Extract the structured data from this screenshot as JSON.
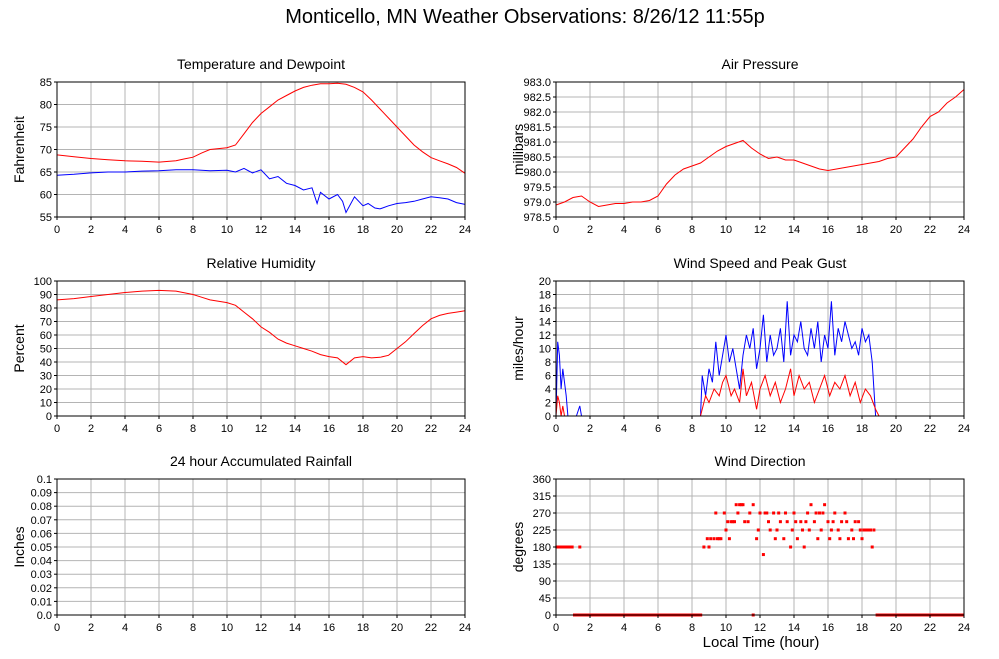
{
  "page": {
    "title": "Monticello, MN Weather Observations: 8/26/12 11:55p",
    "xlabel": "Local Time (hour)"
  },
  "chart_data": [
    {
      "type": "line",
      "title": "Temperature and Dewpoint",
      "ylabel": "Fahrenheit",
      "xlim": [
        0,
        24
      ],
      "ylim": [
        55,
        85
      ],
      "x_ticks": [
        0,
        2,
        4,
        6,
        8,
        10,
        12,
        14,
        16,
        18,
        20,
        22,
        24
      ],
      "y_ticks": [
        "55",
        "60",
        "65",
        "70",
        "75",
        "80",
        "85"
      ],
      "grid": true,
      "series": [
        {
          "color": "#ff0000",
          "x": [
            0,
            1,
            2,
            3,
            4,
            5,
            6,
            7,
            7.5,
            8,
            8.5,
            9,
            10,
            10.5,
            11,
            11.5,
            12,
            12.5,
            13,
            13.5,
            14,
            14.5,
            15,
            15.5,
            16,
            16.5,
            17,
            17.5,
            18,
            18.5,
            19,
            19.5,
            20,
            20.5,
            21,
            21.5,
            22,
            22.5,
            23,
            23.5,
            24
          ],
          "y": [
            68.8,
            68.4,
            68.0,
            67.7,
            67.5,
            67.4,
            67.2,
            67.5,
            67.9,
            68.3,
            69.2,
            70.0,
            70.4,
            71.0,
            73.5,
            76.0,
            78.0,
            79.5,
            81.0,
            82.0,
            83.0,
            83.8,
            84.3,
            84.6,
            84.6,
            84.7,
            84.5,
            83.8,
            82.8,
            81.0,
            79.0,
            77.0,
            75.0,
            73.0,
            71.0,
            69.5,
            68.2,
            67.5,
            66.8,
            66.0,
            64.7
          ]
        },
        {
          "color": "#0000ff",
          "x": [
            0,
            1,
            2,
            3,
            4,
            5,
            6,
            7,
            8,
            9,
            10,
            10.5,
            11,
            11.5,
            12,
            12.5,
            13,
            13.5,
            14,
            14.5,
            15,
            15.3,
            15.5,
            16,
            16.5,
            16.8,
            17,
            17.5,
            18,
            18.3,
            18.7,
            19,
            19.5,
            20,
            20.5,
            21,
            21.5,
            22,
            22.5,
            23,
            23.5,
            24
          ],
          "y": [
            64.3,
            64.5,
            64.8,
            65.0,
            65.0,
            65.2,
            65.3,
            65.5,
            65.5,
            65.3,
            65.4,
            65.0,
            65.8,
            64.8,
            65.5,
            63.5,
            64.0,
            62.5,
            62.0,
            61.0,
            61.5,
            58.0,
            60.5,
            59.0,
            60.0,
            58.5,
            56.0,
            59.5,
            57.5,
            58.0,
            57.0,
            56.8,
            57.5,
            58.0,
            58.2,
            58.5,
            59.0,
            59.5,
            59.3,
            59.0,
            58.2,
            57.8
          ]
        }
      ]
    },
    {
      "type": "line",
      "title": "Air Pressure",
      "ylabel": "millibars",
      "xlim": [
        0,
        24
      ],
      "ylim": [
        978.5,
        983.0
      ],
      "x_ticks": [
        0,
        2,
        4,
        6,
        8,
        10,
        12,
        14,
        16,
        18,
        20,
        22,
        24
      ],
      "y_ticks": [
        "978.5",
        "979.0",
        "979.5",
        "980.0",
        "980.5",
        "981.0",
        "981.5",
        "982.0",
        "982.5",
        "983.0"
      ],
      "grid": true,
      "series": [
        {
          "color": "#ff0000",
          "x": [
            0,
            0.5,
            1,
            1.5,
            2,
            2.5,
            3,
            3.5,
            4,
            4.5,
            5,
            5.5,
            6,
            6.5,
            7,
            7.5,
            8,
            8.5,
            9,
            9.5,
            10,
            10.5,
            11,
            11.5,
            12,
            12.5,
            13,
            13.5,
            14,
            14.5,
            15,
            15.5,
            16,
            16.5,
            17,
            17.5,
            18,
            18.5,
            19,
            19.5,
            20,
            20.5,
            21,
            21.5,
            22,
            22.5,
            23,
            23.5,
            24
          ],
          "y": [
            978.9,
            979.0,
            979.15,
            979.2,
            979.0,
            978.85,
            978.9,
            978.95,
            978.95,
            979.0,
            979.0,
            979.05,
            979.2,
            979.6,
            979.9,
            980.1,
            980.2,
            980.3,
            980.5,
            980.7,
            980.85,
            980.95,
            981.05,
            980.8,
            980.6,
            980.45,
            980.5,
            980.4,
            980.4,
            980.3,
            980.2,
            980.1,
            980.05,
            980.1,
            980.15,
            980.2,
            980.25,
            980.3,
            980.35,
            980.45,
            980.5,
            980.8,
            981.1,
            981.5,
            981.85,
            982.0,
            982.3,
            982.5,
            982.75
          ]
        }
      ]
    },
    {
      "type": "line",
      "title": "Relative Humidity",
      "ylabel": "Percent",
      "xlim": [
        0,
        24
      ],
      "ylim": [
        0,
        100
      ],
      "x_ticks": [
        0,
        2,
        4,
        6,
        8,
        10,
        12,
        14,
        16,
        18,
        20,
        22,
        24
      ],
      "y_ticks": [
        "0",
        "10",
        "20",
        "30",
        "40",
        "50",
        "60",
        "70",
        "80",
        "90",
        "100"
      ],
      "grid": true,
      "series": [
        {
          "color": "#ff0000",
          "x": [
            0,
            1,
            2,
            3,
            4,
            5,
            6,
            7,
            8,
            8.5,
            9,
            9.5,
            10,
            10.5,
            11,
            11.5,
            12,
            12.5,
            13,
            13.5,
            14,
            14.5,
            15,
            15.5,
            16,
            16.5,
            17,
            17.5,
            18,
            18.5,
            19,
            19.5,
            20,
            20.5,
            21,
            21.5,
            22,
            22.5,
            23,
            23.5,
            24
          ],
          "y": [
            86,
            87,
            88.5,
            90,
            91.5,
            92.5,
            93,
            92.5,
            90,
            88,
            86,
            85,
            84,
            82,
            77,
            72,
            66,
            62,
            57,
            54,
            52,
            50,
            48,
            45.5,
            44,
            43,
            38,
            43,
            44,
            43,
            43.5,
            45,
            50,
            55,
            61,
            67,
            72,
            74.5,
            76,
            77,
            78
          ]
        }
      ]
    },
    {
      "type": "line",
      "title": "Wind Speed and Peak Gust",
      "ylabel": "miles/hour",
      "xlim": [
        0,
        24
      ],
      "ylim": [
        0,
        20
      ],
      "x_ticks": [
        0,
        2,
        4,
        6,
        8,
        10,
        12,
        14,
        16,
        18,
        20,
        22,
        24
      ],
      "y_ticks": [
        "0",
        "2",
        "4",
        "6",
        "8",
        "10",
        "12",
        "14",
        "16",
        "18",
        "20"
      ],
      "grid": true,
      "series": [
        {
          "color": "#0000ff",
          "x": [
            0,
            0.1,
            0.2,
            0.3,
            0.4,
            0.5,
            0.6,
            0.7,
            0.8,
            1.2,
            1.4,
            1.5,
            1.6,
            8.5,
            8.6,
            8.8,
            9,
            9.2,
            9.4,
            9.6,
            9.8,
            10,
            10.2,
            10.4,
            10.6,
            10.8,
            11,
            11.2,
            11.4,
            11.6,
            11.8,
            12,
            12.2,
            12.4,
            12.6,
            12.8,
            13,
            13.2,
            13.4,
            13.6,
            13.8,
            14,
            14.2,
            14.4,
            14.6,
            14.8,
            15,
            15.2,
            15.4,
            15.6,
            15.8,
            16,
            16.2,
            16.4,
            16.6,
            16.8,
            17,
            17.2,
            17.4,
            17.6,
            17.8,
            18,
            18.2,
            18.4,
            18.6,
            18.8,
            19,
            24
          ],
          "y": [
            0,
            11,
            9,
            4,
            7,
            5,
            3,
            0,
            0,
            0,
            1.5,
            0,
            0,
            0,
            6,
            3,
            7,
            5,
            11,
            6,
            9,
            12,
            8,
            10,
            7,
            4,
            9,
            12,
            10,
            13,
            7,
            10,
            15,
            8,
            12,
            9,
            10,
            13,
            8,
            17,
            9,
            12,
            11,
            14,
            10,
            9,
            13,
            10,
            14,
            8,
            12,
            10,
            17,
            9,
            13,
            11,
            14,
            12,
            10,
            11,
            9,
            13,
            11,
            12,
            8,
            0,
            0,
            0
          ]
        },
        {
          "color": "#ff0000",
          "x": [
            0,
            0.1,
            0.2,
            0.3,
            0.4,
            0.5,
            0.6,
            0.7,
            0.8,
            8.5,
            8.8,
            9,
            9.3,
            9.6,
            9.8,
            10,
            10.3,
            10.5,
            10.8,
            11,
            11.2,
            11.5,
            11.8,
            12,
            12.3,
            12.6,
            12.9,
            13.2,
            13.5,
            13.8,
            14,
            14.3,
            14.6,
            14.9,
            15.2,
            15.5,
            15.8,
            16.1,
            16.4,
            16.7,
            17,
            17.3,
            17.6,
            17.9,
            18.2,
            18.5,
            18.8,
            19,
            24
          ],
          "y": [
            0,
            3,
            2,
            0,
            1.5,
            0,
            0,
            0,
            0,
            0,
            3,
            2,
            4,
            3,
            5,
            6,
            3,
            4,
            2,
            7,
            3,
            5,
            1,
            4,
            6,
            3,
            5,
            2,
            4,
            7,
            3,
            6,
            4,
            5,
            2,
            4,
            6,
            3,
            5,
            4,
            6,
            3,
            5,
            2,
            4,
            3,
            1,
            0,
            0
          ]
        }
      ]
    },
    {
      "type": "line",
      "title": "24 hour Accumulated Rainfall",
      "ylabel": "Inches",
      "xlim": [
        0,
        24
      ],
      "ylim": [
        0,
        0.1
      ],
      "x_ticks": [
        0,
        2,
        4,
        6,
        8,
        10,
        12,
        14,
        16,
        18,
        20,
        22,
        24
      ],
      "y_ticks": [
        "0.0",
        "0.01",
        "0.02",
        "0.03",
        "0.04",
        "0.05",
        "0.06",
        "0.07",
        "0.08",
        "0.09",
        "0.1"
      ],
      "grid": true,
      "series": [
        {
          "color": "#ff0000",
          "x": [
            0,
            24
          ],
          "y": [
            0,
            0
          ]
        }
      ]
    },
    {
      "type": "scatter",
      "title": "Wind Direction",
      "ylabel": "degrees",
      "xlim": [
        0,
        24
      ],
      "ylim": [
        0,
        360
      ],
      "x_ticks": [
        0,
        2,
        4,
        6,
        8,
        10,
        12,
        14,
        16,
        18,
        20,
        22,
        24
      ],
      "y_ticks": [
        "0",
        "45",
        "90",
        "135",
        "180",
        "225",
        "270",
        "315",
        "360"
      ],
      "grid": true,
      "series": [
        {
          "color": "#ff0000",
          "x": [
            0.05,
            0.15,
            0.25,
            0.35,
            0.45,
            0.55,
            0.65,
            0.75,
            0.85,
            0.95,
            1.4,
            8.7,
            8.9,
            9.0,
            9.1,
            9.3,
            9.4,
            9.5,
            9.6,
            9.7,
            9.9,
            10.0,
            10.1,
            10.2,
            10.3,
            10.4,
            10.5,
            10.6,
            10.7,
            10.8,
            10.9,
            11.0,
            11.1,
            11.3,
            11.4,
            11.6,
            11.8,
            11.9,
            12.0,
            12.2,
            12.3,
            12.4,
            12.5,
            12.6,
            12.8,
            12.9,
            13.0,
            13.1,
            13.2,
            13.4,
            13.5,
            13.6,
            13.8,
            13.9,
            14.0,
            14.1,
            14.2,
            14.4,
            14.5,
            14.6,
            14.7,
            14.8,
            14.9,
            15.0,
            15.2,
            15.3,
            15.4,
            15.5,
            15.6,
            15.7,
            15.8,
            16.0,
            16.1,
            16.2,
            16.3,
            16.4,
            16.6,
            16.7,
            16.8,
            17.0,
            17.1,
            17.2,
            17.4,
            17.5,
            17.6,
            17.8,
            17.9,
            18.0,
            18.1,
            18.2,
            18.3,
            18.4,
            18.5,
            18.6,
            18.7,
            11.6
          ],
          "y": [
            180,
            180,
            180,
            180,
            180,
            180,
            180,
            180,
            180,
            180,
            180,
            180,
            202,
            180,
            202,
            202,
            270,
            202,
            202,
            202,
            270,
            225,
            247,
            202,
            247,
            247,
            247,
            292,
            270,
            292,
            292,
            292,
            247,
            247,
            270,
            292,
            202,
            225,
            270,
            160,
            270,
            270,
            247,
            225,
            270,
            202,
            225,
            270,
            247,
            202,
            270,
            247,
            180,
            225,
            270,
            247,
            202,
            247,
            225,
            180,
            247,
            270,
            225,
            292,
            247,
            270,
            202,
            270,
            225,
            270,
            292,
            247,
            202,
            225,
            247,
            270,
            225,
            202,
            247,
            270,
            247,
            202,
            225,
            202,
            247,
            247,
            225,
            202,
            225,
            225,
            225,
            225,
            225,
            180,
            225,
            0
          ]
        },
        {
          "color": "#ff0000",
          "x": [
            1.0,
            1.5,
            2,
            2.5,
            3,
            3.5,
            4,
            4.5,
            5,
            5.5,
            6,
            6.5,
            7,
            7.5,
            8,
            8.5,
            18.8,
            19.3,
            19.8,
            20.3,
            20.8,
            21.3,
            21.8,
            22.3,
            22.8,
            23.3,
            23.8,
            24
          ],
          "y": [
            0,
            0,
            0,
            0,
            0,
            0,
            0,
            0,
            0,
            0,
            0,
            0,
            0,
            0,
            0,
            0,
            0,
            0,
            0,
            0,
            0,
            0,
            0,
            0,
            0,
            0,
            0,
            0
          ],
          "style": "dense-zero"
        }
      ]
    }
  ]
}
